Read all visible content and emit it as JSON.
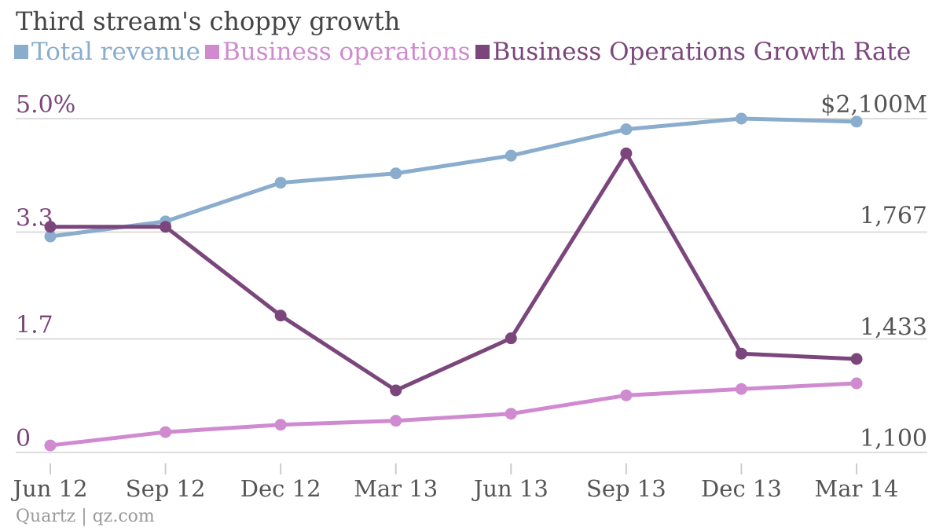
{
  "chart_data": {
    "type": "line",
    "title": "Third stream's choppy growth",
    "categories": [
      "Jun 12",
      "Sep 12",
      "Dec 12",
      "Mar 13",
      "Jun 13",
      "Sep 13",
      "Dec 13",
      "Mar 14"
    ],
    "series": [
      {
        "name": "Total revenue",
        "axis": "right",
        "color": "#8aaccd",
        "values": [
          1747,
          1792,
          1908,
          1936,
          1989,
          2068,
          2100,
          2091
        ]
      },
      {
        "name": "Business operations",
        "axis": "right",
        "color": "#cf8ad0",
        "values": [
          1121,
          1161,
          1183,
          1195,
          1216,
          1271,
          1290,
          1307
        ]
      },
      {
        "name": "Business Operations Growth Rate",
        "axis": "left",
        "color": "#7b467c",
        "values": [
          3.38,
          3.38,
          2.05,
          0.93,
          1.71,
          4.48,
          1.48,
          1.4
        ]
      }
    ],
    "left_axis": {
      "range": [
        0,
        5.0
      ],
      "ticks": [
        0,
        1.7,
        3.3,
        5.0
      ],
      "tick_labels": [
        "0",
        "1.7",
        "3.3",
        "5.0%"
      ],
      "color": "#7b467c"
    },
    "right_axis": {
      "range": [
        1100,
        2100
      ],
      "ticks": [
        1100,
        1433,
        1767,
        2100
      ],
      "tick_labels": [
        "1,100",
        "1,433",
        "1,767",
        "$2,100M"
      ],
      "color": "#555555"
    },
    "grid": true,
    "legend_placement": "top-left"
  },
  "source": "Quartz | qz.com"
}
